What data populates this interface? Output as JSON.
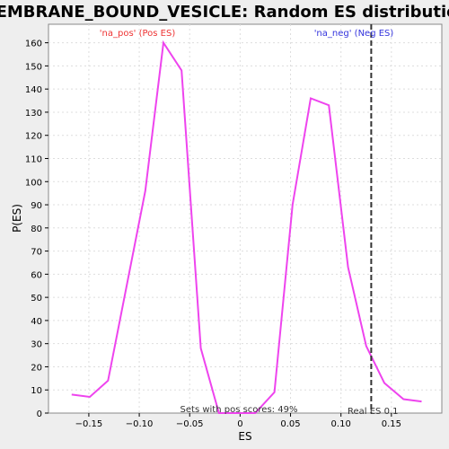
{
  "chart_data": {
    "type": "line",
    "title": "MEMBRANE_BOUND_VESICLE: Random ES distribution",
    "xlabel": "ES",
    "ylabel": "P(ES)",
    "xlim": [
      -0.19,
      0.2
    ],
    "ylim": [
      0,
      168
    ],
    "x_ticks": [
      -0.15,
      -0.1,
      -0.05,
      0,
      0.05,
      0.1,
      0.15
    ],
    "x_tick_labels": [
      "−0.15",
      "−0.10",
      "−0.05",
      "0",
      "0.05",
      "0.10",
      "0.15"
    ],
    "y_ticks": [
      0,
      10,
      20,
      30,
      40,
      50,
      60,
      70,
      80,
      90,
      100,
      110,
      120,
      130,
      140,
      150,
      160
    ],
    "grid": true,
    "series": [
      {
        "color": "#ee44ee",
        "x": [
          -0.167,
          -0.149,
          -0.131,
          -0.094,
          -0.076,
          -0.058,
          -0.039,
          -0.021,
          -0.003,
          0.015,
          0.034,
          0.052,
          0.07,
          0.088,
          0.107,
          0.125,
          0.143,
          0.162,
          0.18
        ],
        "y": [
          8,
          7,
          14,
          96,
          160,
          148,
          28,
          0,
          0,
          0,
          9,
          90,
          136,
          133,
          63,
          29,
          13,
          6,
          5
        ]
      }
    ],
    "vline": {
      "x": 0.13,
      "color": "#333333"
    },
    "annotations": {
      "pos_label": {
        "text": "'na_pos' (Pos ES)",
        "color": "#ee3333"
      },
      "neg_label": {
        "text": "'na_neg' (Neg ES)",
        "color": "#3333dd"
      },
      "sets_text": "Sets with pos scores: 49%",
      "real_es_text": "Real ES 0.1"
    }
  }
}
